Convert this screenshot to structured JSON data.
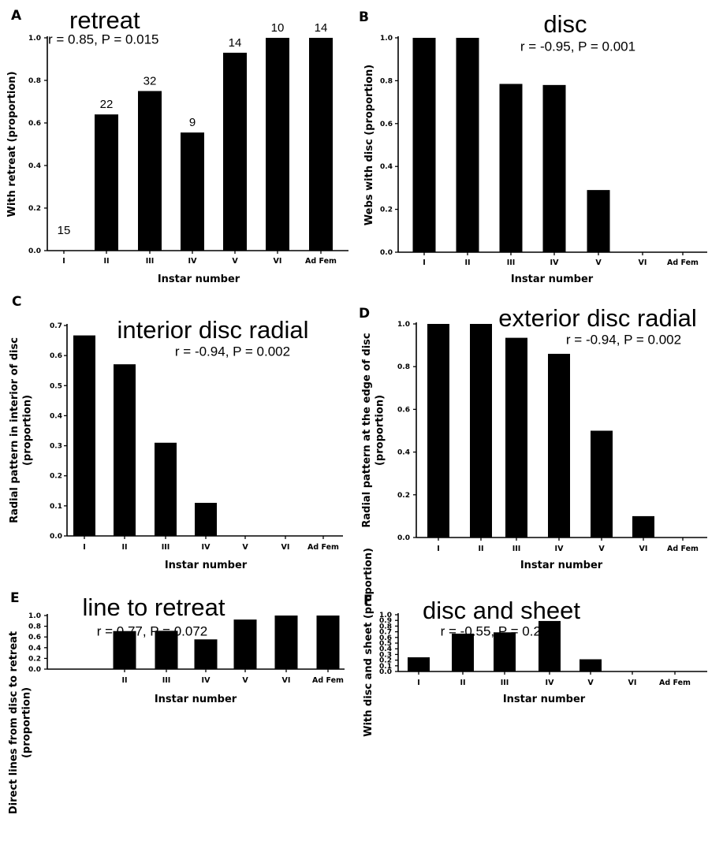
{
  "chart_data": [
    {
      "panel": "A",
      "type": "bar",
      "title": "retreat",
      "stat": "r = 0.85, P = 0.015",
      "xlabel": "Instar number",
      "ylabel": "With retreat (proportion)",
      "categories": [
        "I",
        "II",
        "III",
        "IV",
        "V",
        "VI",
        "Ad Fem"
      ],
      "values": [
        0,
        0.64,
        0.75,
        0.555,
        0.93,
        1.0,
        1.0
      ],
      "bar_labels": [
        "15",
        "22",
        "32",
        "9",
        "14",
        "10",
        "14"
      ],
      "ylim": [
        0,
        1.0
      ],
      "yticks": [
        "0.0",
        "0.2",
        "0.4",
        "0.6",
        "0.8",
        "1.0"
      ]
    },
    {
      "panel": "B",
      "type": "bar",
      "title": "disc",
      "stat": "r = -0.95, P = 0.001",
      "xlabel": "Instar number",
      "ylabel": "Webs with disc (proportion)",
      "categories": [
        "I",
        "II",
        "III",
        "IV",
        "V",
        "VI",
        "Ad Fem"
      ],
      "values": [
        1.0,
        1.0,
        0.785,
        0.78,
        0.29,
        0,
        0
      ],
      "ylim": [
        0,
        1.0
      ],
      "yticks": [
        "0.0",
        "0.2",
        "0.4",
        "0.6",
        "0.8",
        "1.0"
      ]
    },
    {
      "panel": "C",
      "type": "bar",
      "title": "interior disc radial",
      "stat": "r = -0.94, P = 0.002",
      "xlabel": "Instar number",
      "ylabel": "Radial pattern in interior of disc (proportion)",
      "categories": [
        "I",
        "II",
        "III",
        "IV",
        "V",
        "VI",
        "Ad Fem"
      ],
      "values": [
        0.667,
        0.571,
        0.31,
        0.11,
        0,
        0,
        0
      ],
      "ylim": [
        0,
        0.7
      ],
      "yticks": [
        "0.0",
        "0.1",
        "0.2",
        "0.3",
        "0.4",
        "0.5",
        "0.6",
        "0.7"
      ]
    },
    {
      "panel": "D",
      "type": "bar",
      "title": "exterior disc radial",
      "stat": "r = -0.94, P = 0.002",
      "xlabel": "Instar number",
      "ylabel": "Radial pattern at the edge of disc (proportion)",
      "categories": [
        "I",
        "II",
        "III",
        "IV",
        "V",
        "VI",
        "Ad Fem"
      ],
      "values": [
        1.0,
        1.0,
        0.935,
        0.86,
        0.5,
        0.1,
        0
      ],
      "ylim": [
        0,
        1.0
      ],
      "yticks": [
        "0.0",
        "0.2",
        "0.4",
        "0.6",
        "0.8",
        "1.0"
      ]
    },
    {
      "panel": "E",
      "type": "bar",
      "title": "line to retreat",
      "stat": "r = 0.77, P = 0.072",
      "xlabel": "Instar number",
      "ylabel": "Direct lines from disc to retreat (proportion)",
      "categories": [
        "II",
        "III",
        "IV",
        "V",
        "VI",
        "Ad Fem"
      ],
      "values": [
        0.71,
        0.715,
        0.555,
        0.925,
        1.0,
        1.0
      ],
      "ylim": [
        0,
        1.0
      ],
      "yticks": [
        "0.0",
        "0.2",
        "0.4",
        "0.6",
        "0.8",
        "1.0"
      ]
    },
    {
      "panel": "F",
      "type": "bar",
      "title": "disc and sheet",
      "stat": "r = -0.55, P = 0.20",
      "xlabel": "Instar number",
      "ylabel": "With disc and sheet (proportion)",
      "categories": [
        "I",
        "II",
        "III",
        "IV",
        "V",
        "VI",
        "Ad Fem"
      ],
      "values": [
        0.25,
        0.667,
        0.69,
        0.89,
        0.215,
        0,
        0
      ],
      "ylim": [
        0,
        1.0
      ],
      "yticks": [
        "0.0",
        "0.1",
        "0.2",
        "0.3",
        "0.4",
        "0.5",
        "0.6",
        "0.7",
        "0.8",
        "0.9",
        "1.0"
      ]
    }
  ]
}
